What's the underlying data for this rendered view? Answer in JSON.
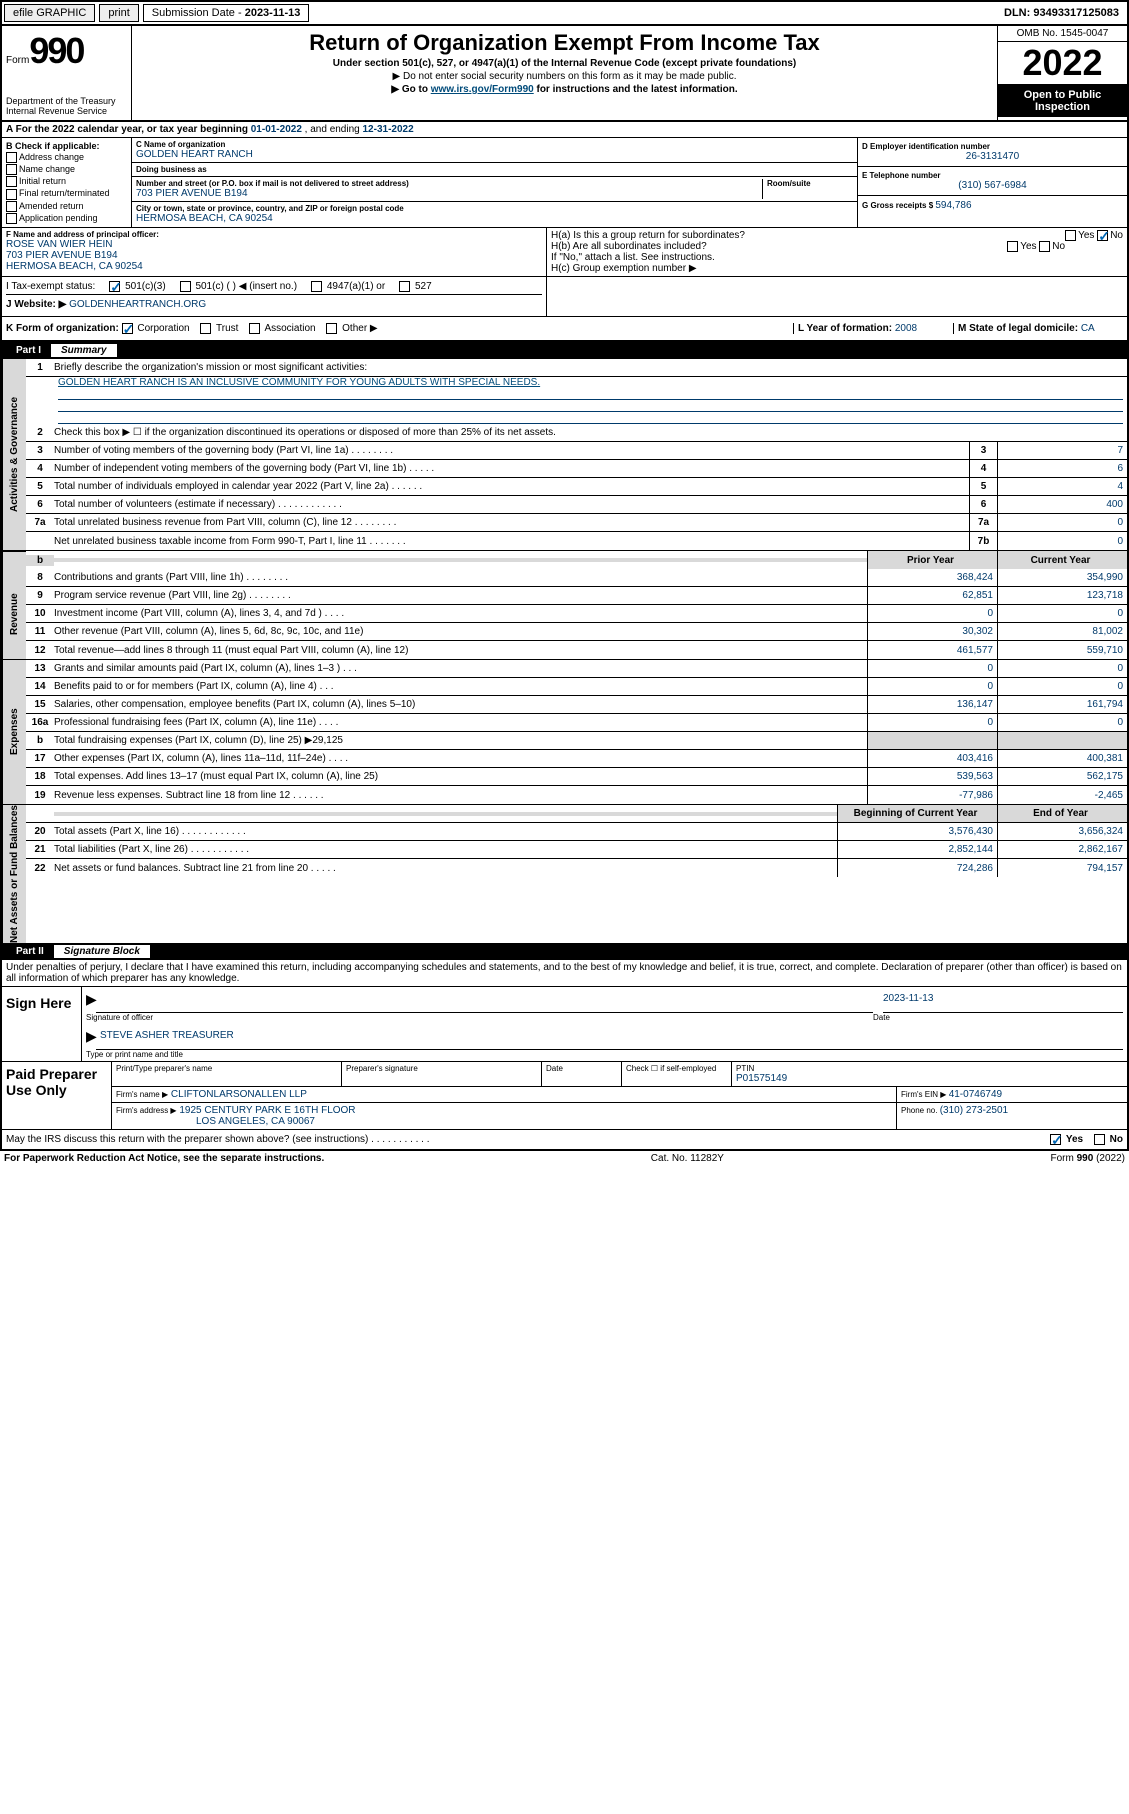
{
  "topbar": {
    "efile": "efile GRAPHIC",
    "print": "print",
    "subdate_label": "Submission Date - ",
    "subdate": "2023-11-13",
    "dln_label": "DLN: ",
    "dln": "93493317125083"
  },
  "header": {
    "form_word": "Form",
    "form_num": "990",
    "dept": "Department of the Treasury\nInternal Revenue Service",
    "title": "Return of Organization Exempt From Income Tax",
    "sub1": "Under section 501(c), 527, or 4947(a)(1) of the Internal Revenue Code (except private foundations)",
    "sub2": "▶ Do not enter social security numbers on this form as it may be made public.",
    "sub3_pre": "▶ Go to ",
    "sub3_link": "www.irs.gov/Form990",
    "sub3_post": " for instructions and the latest information.",
    "omb": "OMB No. 1545-0047",
    "year": "2022",
    "inspect": "Open to Public Inspection"
  },
  "rowA": {
    "text_pre": "A For the 2022 calendar year, or tax year beginning ",
    "begin": "01-01-2022",
    "mid": "   , and ending ",
    "end": "12-31-2022"
  },
  "boxB": {
    "label": "B Check if applicable:",
    "opts": [
      "Address change",
      "Name change",
      "Initial return",
      "Final return/terminated",
      "Amended return",
      "Application pending"
    ]
  },
  "boxC": {
    "name_label": "C Name of organization",
    "name": "GOLDEN HEART RANCH",
    "dba_label": "Doing business as",
    "dba": "",
    "addr_label": "Number and street (or P.O. box if mail is not delivered to street address)",
    "room_label": "Room/suite",
    "addr": "703 PIER AVENUE B194",
    "city_label": "City or town, state or province, country, and ZIP or foreign postal code",
    "city": "HERMOSA BEACH, CA  90254"
  },
  "boxD": {
    "label": "D Employer identification number",
    "val": "26-3131470"
  },
  "boxE": {
    "label": "E Telephone number",
    "val": "(310) 567-6984"
  },
  "boxG": {
    "label": "G Gross receipts $ ",
    "val": "594,786"
  },
  "boxF": {
    "label": "F Name and address of principal officer:",
    "line1": "ROSE VAN WIER HEIN",
    "line2": "703 PIER AVENUE B194",
    "line3": "HERMOSA BEACH, CA  90254"
  },
  "boxH": {
    "a": "H(a)  Is this a group return for subordinates?",
    "b": "H(b)  Are all subordinates included?",
    "b2": "If \"No,\" attach a list. See instructions.",
    "c": "H(c)  Group exemption number ▶",
    "yes": "Yes",
    "no": "No"
  },
  "rowI": {
    "label": "I   Tax-exempt status:",
    "o1": "501(c)(3)",
    "o2": "501(c) (  ) ◀ (insert no.)",
    "o3": "4947(a)(1) or",
    "o4": "527"
  },
  "rowJ": {
    "label": "J   Website: ▶",
    "val": "GOLDENHEARTRANCH.ORG"
  },
  "rowK": {
    "label": "K Form of organization:",
    "opts": [
      "Corporation",
      "Trust",
      "Association",
      "Other ▶"
    ],
    "L": "L Year of formation: ",
    "Lval": "2008",
    "M": "M State of legal domicile: ",
    "Mval": "CA"
  },
  "partI": {
    "num": "Part I",
    "title": "Summary"
  },
  "summary": {
    "s1": {
      "label": "Activities & Governance",
      "l1": "Briefly describe the organization's mission or most significant activities:",
      "l1v": "GOLDEN HEART RANCH IS AN INCLUSIVE COMMUNITY FOR YOUNG ADULTS WITH SPECIAL NEEDS.",
      "l2": "Check this box ▶ ☐  if the organization discontinued its operations or disposed of more than 25% of its net assets.",
      "rows": [
        {
          "n": "3",
          "t": "Number of voting members of the governing body (Part VI, line 1a)  .   .   .   .   .   .   .   .",
          "b": "3",
          "v": "7"
        },
        {
          "n": "4",
          "t": "Number of independent voting members of the governing body (Part VI, line 1b)   .   .   .   .   .",
          "b": "4",
          "v": "6"
        },
        {
          "n": "5",
          "t": "Total number of individuals employed in calendar year 2022 (Part V, line 2a)   .   .   .   .   .   .",
          "b": "5",
          "v": "4"
        },
        {
          "n": "6",
          "t": "Total number of volunteers (estimate if necessary)   .   .   .   .   .   .   .   .   .   .   .   .",
          "b": "6",
          "v": "400"
        },
        {
          "n": "7a",
          "t": "Total unrelated business revenue from Part VIII, column (C), line 12   .   .   .   .   .   .   .   .",
          "b": "7a",
          "v": "0"
        },
        {
          "n": "",
          "t": "Net unrelated business taxable income from Form 990-T, Part I, line 11   .   .   .   .   .   .   .",
          "b": "7b",
          "v": "0"
        }
      ]
    },
    "colhdr": {
      "b": "b",
      "py": "Prior Year",
      "cy": "Current Year"
    },
    "rev": {
      "label": "Revenue",
      "rows": [
        {
          "n": "8",
          "t": "Contributions and grants (Part VIII, line 1h)   .   .   .   .   .   .   .   .",
          "py": "368,424",
          "cy": "354,990"
        },
        {
          "n": "9",
          "t": "Program service revenue (Part VIII, line 2g)   .   .   .   .   .   .   .   .",
          "py": "62,851",
          "cy": "123,718"
        },
        {
          "n": "10",
          "t": "Investment income (Part VIII, column (A), lines 3, 4, and 7d )   .   .   .   .",
          "py": "0",
          "cy": "0"
        },
        {
          "n": "11",
          "t": "Other revenue (Part VIII, column (A), lines 5, 6d, 8c, 9c, 10c, and 11e)",
          "py": "30,302",
          "cy": "81,002"
        },
        {
          "n": "12",
          "t": "Total revenue—add lines 8 through 11 (must equal Part VIII, column (A), line 12)",
          "py": "461,577",
          "cy": "559,710"
        }
      ]
    },
    "exp": {
      "label": "Expenses",
      "rows": [
        {
          "n": "13",
          "t": "Grants and similar amounts paid (Part IX, column (A), lines 1–3 )   .   .   .",
          "py": "0",
          "cy": "0"
        },
        {
          "n": "14",
          "t": "Benefits paid to or for members (Part IX, column (A), line 4)   .   .   .",
          "py": "0",
          "cy": "0"
        },
        {
          "n": "15",
          "t": "Salaries, other compensation, employee benefits (Part IX, column (A), lines 5–10)",
          "py": "136,147",
          "cy": "161,794"
        },
        {
          "n": "16a",
          "t": "Professional fundraising fees (Part IX, column (A), line 11e)   .   .   .   .",
          "py": "0",
          "cy": "0"
        },
        {
          "n": "b",
          "t": "Total fundraising expenses (Part IX, column (D), line 25) ▶29,125",
          "py": "",
          "cy": "",
          "gray": true
        },
        {
          "n": "17",
          "t": "Other expenses (Part IX, column (A), lines 11a–11d, 11f–24e)   .   .   .   .",
          "py": "403,416",
          "cy": "400,381"
        },
        {
          "n": "18",
          "t": "Total expenses. Add lines 13–17 (must equal Part IX, column (A), line 25)",
          "py": "539,563",
          "cy": "562,175"
        },
        {
          "n": "19",
          "t": "Revenue less expenses. Subtract line 18 from line 12   .   .   .   .   .   .",
          "py": "-77,986",
          "cy": "-2,465"
        }
      ]
    },
    "na": {
      "label": "Net Assets or Fund Balances",
      "hdr": {
        "py": "Beginning of Current Year",
        "cy": "End of Year"
      },
      "rows": [
        {
          "n": "20",
          "t": "Total assets (Part X, line 16)   .   .   .   .   .   .   .   .   .   .   .   .",
          "py": "3,576,430",
          "cy": "3,656,324"
        },
        {
          "n": "21",
          "t": "Total liabilities (Part X, line 26)   .   .   .   .   .   .   .   .   .   .   .",
          "py": "2,852,144",
          "cy": "2,862,167"
        },
        {
          "n": "22",
          "t": "Net assets or fund balances. Subtract line 21 from line 20   .   .   .   .   .",
          "py": "724,286",
          "cy": "794,157"
        }
      ]
    }
  },
  "partII": {
    "num": "Part II",
    "title": "Signature Block"
  },
  "sig": {
    "decl": "Under penalties of perjury, I declare that I have examined this return, including accompanying schedules and statements, and to the best of my knowledge and belief, it is true, correct, and complete. Declaration of preparer (other than officer) is based on all information of which preparer has any knowledge.",
    "here": "Sign Here",
    "officer": "Signature of officer",
    "date": "Date",
    "dateval": "2023-11-13",
    "name": "STEVE ASHER  TREASURER",
    "name_lbl": "Type or print name and title"
  },
  "prep": {
    "label": "Paid Preparer Use Only",
    "h1": "Print/Type preparer's name",
    "h2": "Preparer's signature",
    "h3": "Date",
    "h4_pre": "Check ☐ if self-employed",
    "h5": "PTIN",
    "ptin": "P01575149",
    "firm_lbl": "Firm's name     ▶",
    "firm": "CLIFTONLARSONALLEN LLP",
    "ein_lbl": "Firm's EIN ▶ ",
    "ein": "41-0746749",
    "addr_lbl": "Firm's address ▶",
    "addr1": "1925 CENTURY PARK E 16TH FLOOR",
    "addr2": "LOS ANGELES, CA  90067",
    "phone_lbl": "Phone no. ",
    "phone": "(310) 273-2501"
  },
  "foot": {
    "q": "May the IRS discuss this return with the preparer shown above? (see instructions)   .   .   .   .   .   .   .   .   .   .   .",
    "yes": "Yes",
    "no": "No",
    "pra": "For Paperwork Reduction Act Notice, see the separate instructions.",
    "cat": "Cat. No. 11282Y",
    "form": "Form 990 (2022)"
  }
}
